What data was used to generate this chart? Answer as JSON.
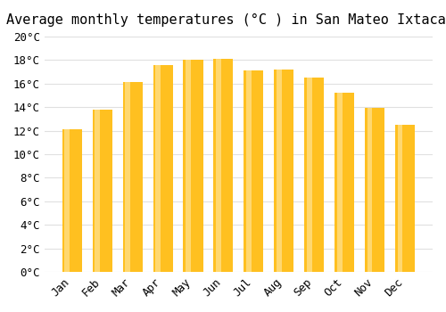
{
  "title": "Average monthly temperatures (°C ) in San Mateo Ixtacalco",
  "months": [
    "Jan",
    "Feb",
    "Mar",
    "Apr",
    "May",
    "Jun",
    "Jul",
    "Aug",
    "Sep",
    "Oct",
    "Nov",
    "Dec"
  ],
  "values": [
    12.1,
    13.8,
    16.1,
    17.6,
    18.0,
    18.1,
    17.1,
    17.2,
    16.5,
    15.2,
    13.9,
    12.5
  ],
  "bar_color_main": "#FFC020",
  "bar_color_light": "#FFD870",
  "ylim": [
    0,
    20
  ],
  "ytick_step": 2,
  "background_color": "#ffffff",
  "grid_color": "#e0e0e0",
  "title_fontsize": 11,
  "tick_fontsize": 9,
  "font_family": "monospace"
}
